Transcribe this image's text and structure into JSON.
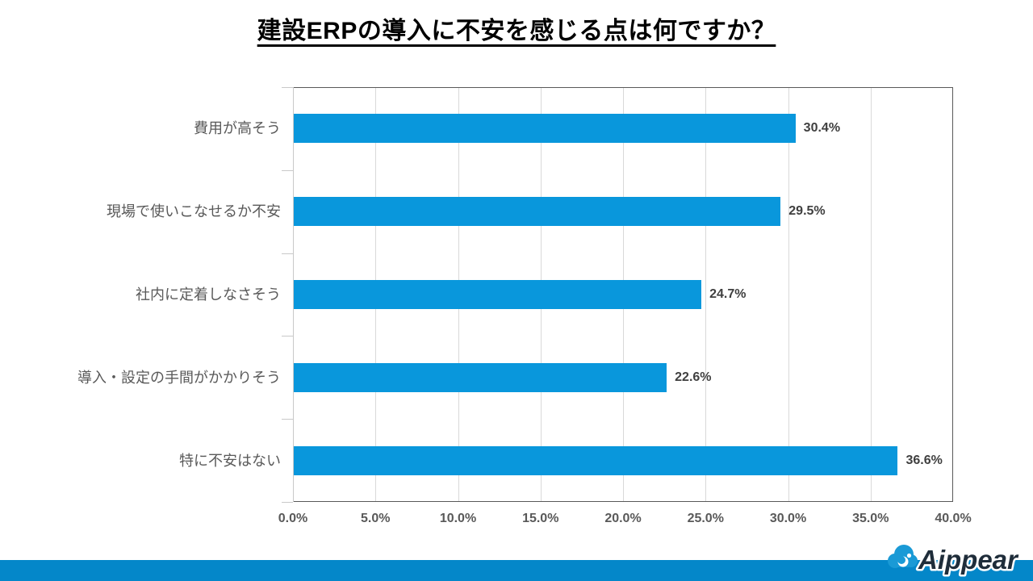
{
  "title": "建設ERPの導入に不安を感じる点は何ですか？",
  "chart_data": {
    "type": "bar",
    "orientation": "horizontal",
    "title": "建設ERPの導入に不安を感じる点は何ですか？",
    "categories": [
      "費用が高そう",
      "現場で使いこなせるか不安",
      "社内に定着しなさそう",
      "導入・設定の手間がかかりそう",
      "特に不安はない"
    ],
    "values": [
      30.4,
      29.5,
      24.7,
      22.6,
      36.6
    ],
    "value_labels": [
      "30.4%",
      "29.5%",
      "24.7%",
      "22.6%",
      "36.6%"
    ],
    "x_ticks": [
      "0.0%",
      "5.0%",
      "10.0%",
      "15.0%",
      "20.0%",
      "25.0%",
      "30.0%",
      "35.0%",
      "40.0%"
    ],
    "xlim": [
      0,
      40
    ],
    "xlabel": "",
    "ylabel": "",
    "grid": true,
    "legend": "none",
    "bar_color": "#0997DC",
    "colors": {
      "grid": "#d9d9d9",
      "plot_border": "#595959",
      "axis_light": "#c9c9c9",
      "tick_label": "#595959",
      "value_label": "#3f3f3f",
      "category_label": "#595959",
      "title": "#000000"
    }
  },
  "footer": {
    "brand": "Aippear",
    "bar_color": "#0487c9",
    "logo_cloud_color": "#1a9ad6",
    "logo_text_color": "#1f2d3a"
  }
}
